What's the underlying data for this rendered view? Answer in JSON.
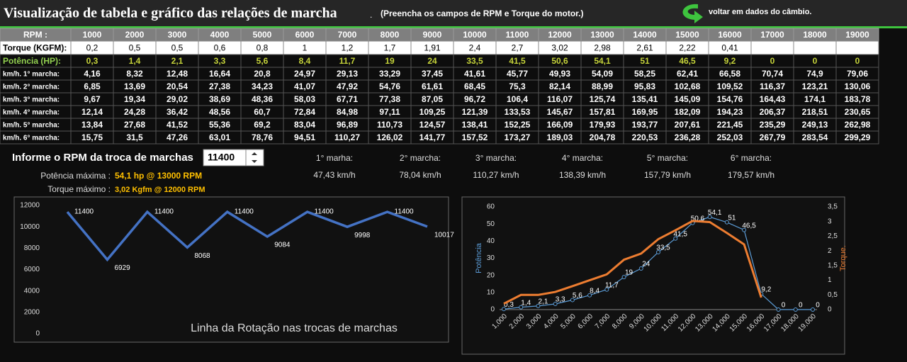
{
  "header": {
    "title": "Visualização de tabela e gráfico das relações de marcha",
    "title_suffix": ".",
    "instruction": "(Preencha os campos de RPM e  Torque do motor.)",
    "back_link": "voltar em dados do câmbio."
  },
  "table": {
    "rows": [
      {
        "label": "RPM :",
        "cells": [
          1000,
          2000,
          3000,
          4000,
          5000,
          6000,
          7000,
          8000,
          9000,
          10000,
          11000,
          12000,
          13000,
          14000,
          15000,
          16000,
          17000,
          18000,
          19000
        ]
      },
      {
        "label": "Torque (KGFM):",
        "cells": [
          "0,2",
          "0,5",
          "0,5",
          "0,6",
          "0,8",
          "1",
          "1,2",
          "1,7",
          "1,91",
          "2,4",
          "2,7",
          "3,02",
          "2,98",
          "2,61",
          "2,22",
          "0,41",
          null,
          null,
          null
        ]
      },
      {
        "label": "Potência (HP):",
        "cells": [
          "0,3",
          "1,4",
          "2,1",
          "3,3",
          "5,6",
          "8,4",
          "11,7",
          "19",
          "24",
          "33,5",
          "41,5",
          "50,6",
          "54,1",
          "51",
          "46,5",
          "9,2",
          "0",
          "0",
          "0"
        ]
      },
      {
        "label": "km/h. 1° marcha:",
        "cells": [
          "4,16",
          "8,32",
          "12,48",
          "16,64",
          "20,8",
          "24,97",
          "29,13",
          "33,29",
          "37,45",
          "41,61",
          "45,77",
          "49,93",
          "54,09",
          "58,25",
          "62,41",
          "66,58",
          "70,74",
          "74,9",
          "79,06"
        ]
      },
      {
        "label": "km/h. 2° marcha:",
        "cells": [
          "6,85",
          "13,69",
          "20,54",
          "27,38",
          "34,23",
          "41,07",
          "47,92",
          "54,76",
          "61,61",
          "68,45",
          "75,3",
          "82,14",
          "88,99",
          "95,83",
          "102,68",
          "109,52",
          "116,37",
          "123,21",
          "130,06"
        ]
      },
      {
        "label": "km/h. 3° marcha:",
        "cells": [
          "9,67",
          "19,34",
          "29,02",
          "38,69",
          "48,36",
          "58,03",
          "67,71",
          "77,38",
          "87,05",
          "96,72",
          "106,4",
          "116,07",
          "125,74",
          "135,41",
          "145,09",
          "154,76",
          "164,43",
          "174,1",
          "183,78"
        ]
      },
      {
        "label": "km/h. 4° marcha:",
        "cells": [
          "12,14",
          "24,28",
          "36,42",
          "48,56",
          "60,7",
          "72,84",
          "84,98",
          "97,11",
          "109,25",
          "121,39",
          "133,53",
          "145,67",
          "157,81",
          "169,95",
          "182,09",
          "194,23",
          "206,37",
          "218,51",
          "230,65"
        ]
      },
      {
        "label": "km/h. 5° marcha:",
        "cells": [
          "13,84",
          "27,68",
          "41,52",
          "55,36",
          "69,2",
          "83,04",
          "96,89",
          "110,73",
          "124,57",
          "138,41",
          "152,25",
          "166,09",
          "179,93",
          "193,77",
          "207,61",
          "221,45",
          "235,29",
          "249,13",
          "262,98"
        ]
      },
      {
        "label": "km/h. 6° marcha:",
        "cells": [
          "15,75",
          "31,5",
          "47,26",
          "63,01",
          "78,76",
          "94,51",
          "110,27",
          "126,02",
          "141,77",
          "157,52",
          "173,27",
          "189,03",
          "204,78",
          "220,53",
          "236,28",
          "252,03",
          "267,79",
          "283,54",
          "299,29"
        ]
      }
    ]
  },
  "shift": {
    "prompt": "Informe o RPM da troca de marchas",
    "rpm": 11400,
    "gears": [
      {
        "label": "1° marha:",
        "speed": "47,43 km/h"
      },
      {
        "label": "2° marcha:",
        "speed": "78,04 km/h"
      },
      {
        "label": "3° marcha:",
        "speed": "110,27 km/h"
      },
      {
        "label": "4° marcha:",
        "speed": "138,39 km/h"
      },
      {
        "label": "5° marcha:",
        "speed": "157,79 km/h"
      },
      {
        "label": "6° marcha:",
        "speed": "179,57 km/h"
      }
    ],
    "max_power": {
      "label": "Potência máxima :",
      "value": "54,1 hp @ 13000 RPM"
    },
    "max_torque": {
      "label": "Torque máximo :",
      "value": "3,02 Kgfm @ 12000 RPM"
    }
  },
  "chart_data": [
    {
      "type": "line",
      "title": "Linha da Rotação nas trocas de marchas",
      "categories": [
        null,
        null,
        null,
        null,
        null,
        null,
        null,
        null,
        null,
        null
      ],
      "values": [
        11400,
        6929,
        11400,
        8068,
        11400,
        9084,
        11400,
        9998,
        11400,
        10017
      ],
      "color": "#4472c4",
      "ylim": [
        0,
        12000
      ],
      "yticks": [
        0,
        2000,
        4000,
        6000,
        8000,
        10000,
        12000
      ],
      "data_labels": true
    },
    {
      "type": "line",
      "categories": [
        "1,000",
        "2,000",
        "3,000",
        "4,000",
        "5,000",
        "6,000",
        "7,000",
        "8,000",
        "9,000",
        "10,000",
        "11,000",
        "12,000",
        "13,000",
        "14,000",
        "15,000",
        "16,000",
        "17,000",
        "18,000",
        "19,000"
      ],
      "y_label": "Potência",
      "y2_label": "Torque.",
      "ylim": [
        0,
        60
      ],
      "yticks": [
        0,
        10,
        20,
        30,
        40,
        50,
        60
      ],
      "y2lim": [
        0,
        3.5
      ],
      "y2ticks": [
        0,
        {
          "value": 0.5,
          "label": "0,5"
        },
        1,
        {
          "value": 1.5,
          "label": "1,5"
        },
        2,
        {
          "value": 2.5,
          "label": "2,5"
        },
        3,
        {
          "value": 3.5,
          "label": "3,5"
        }
      ],
      "series": [
        {
          "color": "#5b9bd5",
          "values": [
            0.3,
            1.4,
            2.1,
            3.3,
            5.6,
            8.4,
            11.7,
            19,
            24,
            33.5,
            41.5,
            50.6,
            54.1,
            51,
            46.5,
            9.2,
            0,
            0,
            0
          ],
          "value_labels": [
            "0,3",
            "1,4",
            "2,1",
            "3,3",
            "5,6",
            "8,4",
            "11,7",
            "19",
            "24",
            "33,5",
            "41,5",
            "50,6",
            "54,1",
            "51",
            "46,5",
            "9,2",
            "0",
            "0",
            "0"
          ]
        },
        {
          "color": "#ed7d31",
          "axis": "y2",
          "values": [
            0.2,
            0.5,
            0.5,
            0.6,
            0.8,
            1,
            1.2,
            1.7,
            1.91,
            2.4,
            2.7,
            3.02,
            2.98,
            2.61,
            2.22,
            0.41,
            null,
            null,
            null
          ]
        }
      ]
    }
  ]
}
